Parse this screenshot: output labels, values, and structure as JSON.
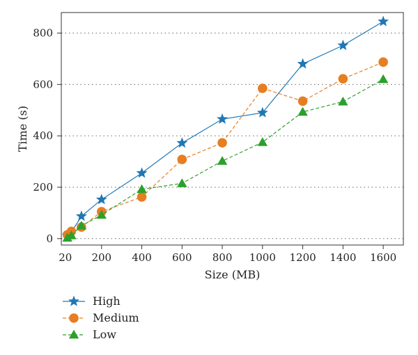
{
  "chart_data": {
    "type": "line",
    "xlabel": "Size (MB)",
    "ylabel": "Time (s)",
    "xlim": [
      0,
      1700
    ],
    "ylim": [
      -25,
      880
    ],
    "xticks": [
      200,
      400,
      600,
      800,
      1000,
      1200,
      1400,
      1600
    ],
    "xtick_labels": [
      "200",
      "400",
      "600",
      "800",
      "1000",
      "1200",
      "1400",
      "1600"
    ],
    "extra_xtick_labels": [
      {
        "value": 20,
        "label": "20"
      }
    ],
    "yticks": [
      0,
      200,
      400,
      600,
      800
    ],
    "ytick_labels": [
      "0",
      "200",
      "400",
      "600",
      "800"
    ],
    "grid": "horizontal-dotted",
    "legend_position": "below",
    "series": [
      {
        "name": "High",
        "color": "#1f77b4",
        "marker": "star",
        "line_style": "solid",
        "x": [
          30,
          50,
          100,
          200,
          400,
          600,
          800,
          1000,
          1200,
          1400,
          1600
        ],
        "y": [
          12,
          25,
          87,
          152,
          255,
          372,
          465,
          490,
          680,
          752,
          845
        ]
      },
      {
        "name": "Medium",
        "color": "#e67e22",
        "marker": "circle",
        "line_style": "dashed",
        "x": [
          30,
          50,
          100,
          200,
          400,
          600,
          800,
          1000,
          1200,
          1400,
          1600
        ],
        "y": [
          15,
          28,
          45,
          105,
          162,
          308,
          373,
          585,
          535,
          622,
          687
        ]
      },
      {
        "name": "Low",
        "color": "#2ca02c",
        "marker": "triangle",
        "line_style": "dashed",
        "x": [
          30,
          50,
          100,
          200,
          400,
          600,
          800,
          1000,
          1200,
          1400,
          1600
        ],
        "y": [
          3,
          12,
          50,
          92,
          192,
          215,
          302,
          375,
          493,
          533,
          620
        ]
      }
    ]
  }
}
